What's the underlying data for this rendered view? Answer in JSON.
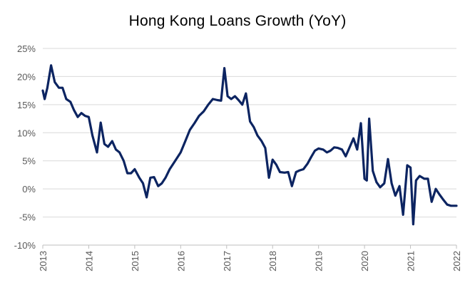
{
  "chart_data": {
    "type": "line",
    "title": "Hong Kong Loans Growth (YoY)",
    "xlabel": "",
    "ylabel": "",
    "ylim": [
      -10,
      25
    ],
    "y_ticks": [
      25,
      20,
      15,
      10,
      5,
      0,
      -5,
      -10
    ],
    "y_tick_labels": [
      "25%",
      "20%",
      "15%",
      "10%",
      "5%",
      "0%",
      "-5%",
      "-10%"
    ],
    "x_ticks": [
      2013,
      2014,
      2015,
      2016,
      2017,
      2018,
      2019,
      2020,
      2021,
      2022
    ],
    "x_tick_labels": [
      "2013",
      "2014",
      "2015",
      "2016",
      "2017",
      "2018",
      "2019",
      "2020",
      "2021",
      "2022"
    ],
    "grid": "horizontal",
    "line_color": "#0c2461",
    "grid_color": "#d9d9d9",
    "series": [
      {
        "x": [
          2013.0,
          2013.04,
          2013.1,
          2013.18,
          2013.26,
          2013.35,
          2013.43,
          2013.51,
          2013.6,
          2013.68,
          2013.76,
          2013.84,
          2013.92,
          2014.0,
          2014.08,
          2014.18,
          2014.26,
          2014.34,
          2014.42,
          2014.51,
          2014.59,
          2014.67,
          2014.76,
          2014.84,
          2014.92,
          2015.0,
          2015.1,
          2015.18,
          2015.26,
          2015.34,
          2015.42,
          2015.51,
          2015.59,
          2015.67,
          2015.76,
          2015.84,
          2015.92,
          2016.0,
          2016.1,
          2016.2,
          2016.3,
          2016.4,
          2016.5,
          2016.6,
          2016.7,
          2016.8,
          2016.88,
          2016.95,
          2017.02,
          2017.1,
          2017.18,
          2017.26,
          2017.34,
          2017.42,
          2017.51,
          2017.59,
          2017.67,
          2017.76,
          2017.84,
          2017.92,
          2018.0,
          2018.08,
          2018.16,
          2018.26,
          2018.34,
          2018.42,
          2018.51,
          2018.59,
          2018.67,
          2018.76,
          2018.84,
          2018.92,
          2019.0,
          2019.1,
          2019.18,
          2019.26,
          2019.34,
          2019.42,
          2019.51,
          2019.59,
          2019.67,
          2019.76,
          2019.84,
          2019.92,
          2020.0,
          2020.05,
          2020.1,
          2020.18,
          2020.26,
          2020.34,
          2020.43,
          2020.51,
          2020.59,
          2020.67,
          2020.76,
          2020.84,
          2020.93,
          2021.0,
          2021.06,
          2021.12,
          2021.2,
          2021.3,
          2021.38,
          2021.46,
          2021.55,
          2021.63,
          2021.72,
          2021.8,
          2021.88,
          2021.95,
          2022.0
        ],
        "values": [
          17.5,
          16.0,
          18.0,
          22.0,
          19.0,
          18.0,
          18.0,
          16.0,
          15.5,
          14.0,
          12.8,
          13.5,
          13.0,
          12.8,
          9.5,
          6.5,
          11.8,
          8.0,
          7.5,
          8.5,
          7.0,
          6.5,
          5.0,
          2.8,
          2.8,
          3.5,
          2.0,
          1.0,
          -1.5,
          2.0,
          2.1,
          0.5,
          1.0,
          2.0,
          3.5,
          4.5,
          5.5,
          6.5,
          8.5,
          10.5,
          11.7,
          13.0,
          13.8,
          15.0,
          16.0,
          15.8,
          15.7,
          21.5,
          16.5,
          16.0,
          16.5,
          15.8,
          15.0,
          17.0,
          12.0,
          11.0,
          9.5,
          8.5,
          7.3,
          2.0,
          5.2,
          4.3,
          3.0,
          2.9,
          3.0,
          0.5,
          3.0,
          3.3,
          3.5,
          4.5,
          5.7,
          6.8,
          7.2,
          7.0,
          6.5,
          6.8,
          7.4,
          7.3,
          7.0,
          5.8,
          7.3,
          9.0,
          7.0,
          11.7,
          1.8,
          1.5,
          12.5,
          3.2,
          1.2,
          0.3,
          1.0,
          5.3,
          1.0,
          -1.2,
          0.5,
          -4.6,
          4.2,
          3.8,
          -6.3,
          1.5,
          2.3,
          1.8,
          1.8,
          -2.3,
          0.0,
          -1.0,
          -2.0,
          -2.8,
          -3.0,
          -3.0,
          -3.0
        ]
      }
    ]
  }
}
